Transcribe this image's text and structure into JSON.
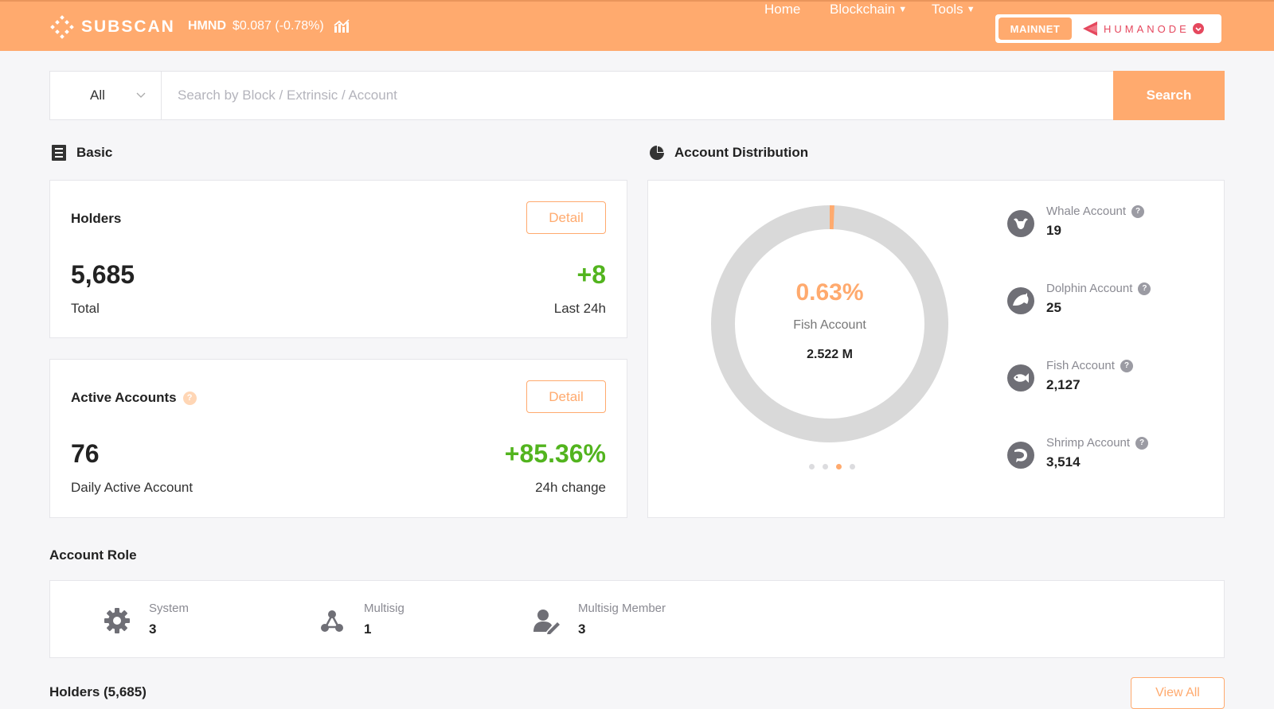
{
  "header": {
    "brand": "SUBSCAN",
    "token_symbol": "HMND",
    "token_price": "$0.087 (-0.78%)",
    "nav": [
      {
        "label": "Home"
      },
      {
        "label": "Blockchain"
      },
      {
        "label": "Tools"
      }
    ],
    "network_button": "MAINNET",
    "network_name": "HUMANODE"
  },
  "search": {
    "filter_value": "All",
    "placeholder": "Search by Block / Extrinsic / Account",
    "button_label": "Search"
  },
  "basic": {
    "title": "Basic",
    "holders": {
      "label": "Holders",
      "detail": "Detail",
      "total": "5,685",
      "total_label": "Total",
      "change": "+8",
      "change_label": "Last 24h"
    },
    "active": {
      "label": "Active Accounts",
      "help": "?",
      "detail": "Detail",
      "count": "76",
      "count_label": "Daily Active Account",
      "change": "+85.36%",
      "change_label": "24h change"
    }
  },
  "distribution": {
    "title": "Account Distribution",
    "center_percent": "0.63%",
    "center_label": "Fish Account",
    "center_value": "2.522 M",
    "percent_fraction": 0.0063,
    "highlight_color": "#ffaa6e",
    "ring_color": "#d9d9d9",
    "items": [
      {
        "name": "Whale Account",
        "value": "19",
        "icon": "whale-icon"
      },
      {
        "name": "Dolphin Account",
        "value": "25",
        "icon": "dolphin-icon"
      },
      {
        "name": "Fish Account",
        "value": "2,127",
        "icon": "fish-icon"
      },
      {
        "name": "Shrimp Account",
        "value": "3,514",
        "icon": "shrimp-icon"
      }
    ],
    "pager_active": 2,
    "pager_count": 4
  },
  "roles": {
    "title": "Account Role",
    "items": [
      {
        "name": "System",
        "value": "3",
        "icon": "gear-icon"
      },
      {
        "name": "Multisig",
        "value": "1",
        "icon": "multisig-icon"
      },
      {
        "name": "Multisig Member",
        "value": "3",
        "icon": "multisig-member-icon"
      }
    ]
  },
  "holders_list": {
    "title": "Holders (5,685)",
    "view_all": "View All"
  },
  "colors": {
    "accent": "#ffaa6e",
    "positive": "#52b41e"
  }
}
